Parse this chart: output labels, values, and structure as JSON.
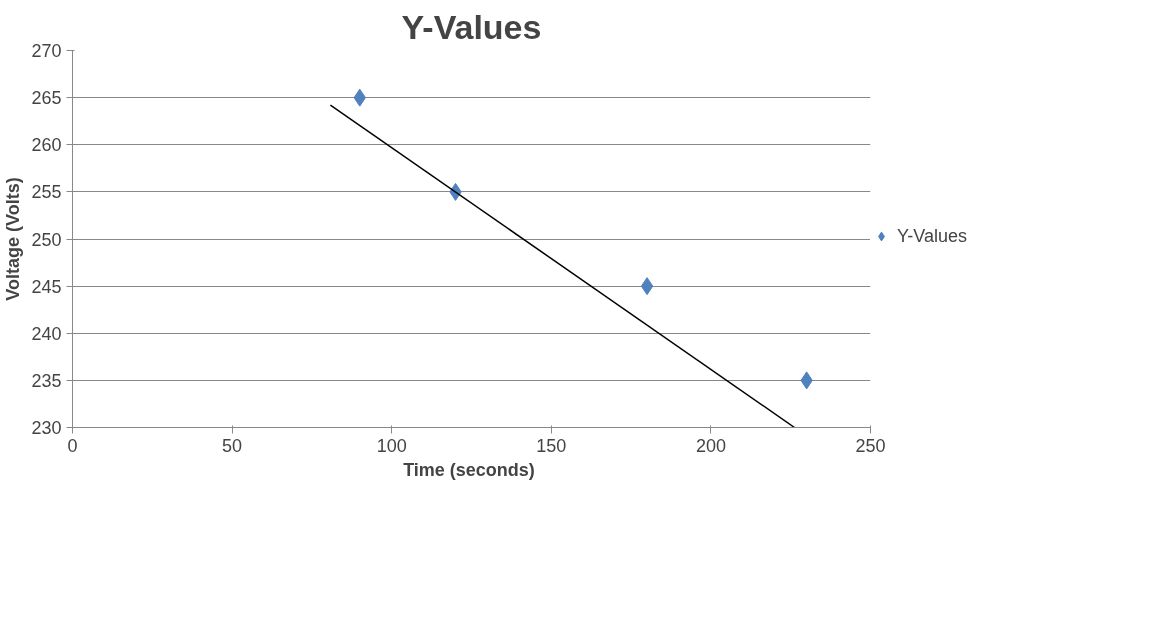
{
  "chart_data": {
    "type": "scatter",
    "title": "Y-Values",
    "xlabel": "Time  (seconds)",
    "ylabel": "Voltage (Volts)",
    "series": [
      {
        "name": "Y-Values",
        "marker": "diamond",
        "color": "#4f81bd",
        "x": [
          90,
          120,
          180,
          230
        ],
        "values": [
          265,
          255,
          245,
          235
        ]
      },
      {
        "type": "line",
        "color": "#000000",
        "x": [
          80.8,
          226.2
        ],
        "values": [
          264.2,
          230
        ]
      }
    ],
    "xlim": [
      0,
      250
    ],
    "xticks": [
      0,
      50,
      100,
      150,
      200,
      250
    ],
    "ylim": [
      230,
      270
    ],
    "yticks": [
      230,
      235,
      240,
      245,
      250,
      255,
      260,
      265,
      270
    ],
    "grid": "y",
    "legend": "right"
  }
}
